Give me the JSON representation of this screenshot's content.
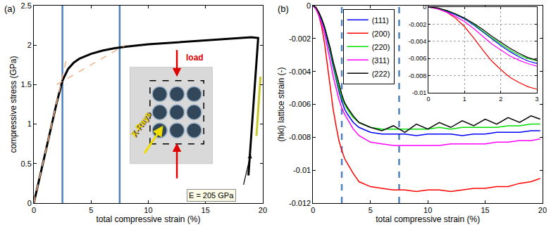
{
  "chart_data": [
    {
      "type": "line",
      "panel_label": "(a)",
      "xlabel": "total compressive strain (%)",
      "ylabel": "compressive stress (GPa)",
      "xlim": [
        0,
        20
      ],
      "ylim": [
        0,
        2.5
      ],
      "xticks": [
        0,
        5,
        10,
        15,
        20
      ],
      "yticks": [
        0,
        0.5,
        1,
        1.5,
        2,
        2.5
      ],
      "grid": false,
      "series": [
        {
          "color": "#000000",
          "line_style": "solid",
          "x": [
            0,
            0.5,
            1,
            1.5,
            2,
            2.5,
            3,
            3.5,
            4,
            5,
            6,
            7,
            8,
            10,
            12,
            14,
            16,
            18,
            19,
            19.6,
            19.4,
            19.2,
            19.0,
            18.85,
            18.75
          ],
          "values": [
            0,
            0.32,
            0.64,
            0.96,
            1.27,
            1.55,
            1.7,
            1.78,
            1.83,
            1.89,
            1.93,
            1.96,
            1.98,
            2.01,
            2.03,
            2.05,
            2.07,
            2.09,
            2.1,
            2.09,
            1.7,
            1.3,
            0.9,
            0.6,
            0.35
          ]
        },
        {
          "color": "#f4b183",
          "line_style": "dashed",
          "x": [
            0,
            2.9
          ],
          "values": [
            0,
            1.85
          ]
        },
        {
          "color": "#f4b183",
          "line_style": "dashed",
          "x": [
            2,
            8
          ],
          "values": [
            1.5,
            2.0
          ]
        },
        {
          "color": "#c8c82a",
          "line_style": "solid",
          "x": [
            19.45,
            19.8
          ],
          "values": [
            0.85,
            1.6
          ]
        }
      ],
      "vertical_lines": {
        "x": [
          2.5,
          7.5
        ],
        "color": "#4f81bd",
        "line_style": "solid"
      },
      "annotations": [
        {
          "text": "load",
          "color": "#e00000"
        },
        {
          "text": "X-Rays",
          "color": "#f0dc00"
        },
        {
          "text": "E = 205 GPa",
          "color": "#000000"
        }
      ]
    },
    {
      "type": "line",
      "panel_label": "(b)",
      "xlabel": "total compressive strain (%)",
      "ylabel": "(hkl) lattice strain (-)",
      "xlim": [
        0,
        20
      ],
      "ylim": [
        -0.012,
        0
      ],
      "xticks": [
        0,
        5,
        10,
        15,
        20
      ],
      "yticks": [
        -0.012,
        -0.01,
        -0.008,
        -0.006,
        -0.004,
        -0.002,
        0
      ],
      "grid": false,
      "legend": "upper left",
      "x": [
        0,
        0.25,
        0.5,
        0.75,
        1,
        1.25,
        1.5,
        1.75,
        2,
        2.25,
        2.5,
        2.75,
        3,
        3.5,
        4,
        5,
        6,
        7,
        8,
        9,
        10,
        11,
        12,
        13,
        14,
        15,
        16,
        17,
        18,
        19,
        19.8
      ],
      "series": [
        {
          "name": "(111)",
          "color": "#0000ff",
          "values": [
            0,
            -0.0002,
            -0.0005,
            -0.0009,
            -0.0014,
            -0.0021,
            -0.0029,
            -0.0037,
            -0.0045,
            -0.0052,
            -0.0058,
            -0.0063,
            -0.0066,
            -0.0071,
            -0.0074,
            -0.0077,
            -0.0078,
            -0.0078,
            -0.0078,
            -0.0079,
            -0.0078,
            -0.0078,
            -0.0078,
            -0.0079,
            -0.0078,
            -0.0078,
            -0.0077,
            -0.0077,
            -0.0077,
            -0.0076,
            -0.0076
          ]
        },
        {
          "name": "(200)",
          "color": "#ff0000",
          "values": [
            0,
            -0.0002,
            -0.0006,
            -0.0013,
            -0.0023,
            -0.0036,
            -0.005,
            -0.0063,
            -0.0073,
            -0.0082,
            -0.0088,
            -0.0093,
            -0.0096,
            -0.0102,
            -0.0107,
            -0.011,
            -0.0111,
            -0.0112,
            -0.0112,
            -0.0113,
            -0.0112,
            -0.0112,
            -0.0113,
            -0.0112,
            -0.0111,
            -0.0111,
            -0.011,
            -0.011,
            -0.0108,
            -0.0107,
            -0.0105
          ]
        },
        {
          "name": "(220)",
          "color": "#00dd00",
          "values": [
            0,
            -0.0002,
            -0.0004,
            -0.0008,
            -0.0013,
            -0.002,
            -0.0028,
            -0.0036,
            -0.0043,
            -0.005,
            -0.0056,
            -0.006,
            -0.0063,
            -0.0068,
            -0.0071,
            -0.0074,
            -0.0075,
            -0.0075,
            -0.0075,
            -0.0075,
            -0.0075,
            -0.0074,
            -0.0075,
            -0.0074,
            -0.0074,
            -0.0074,
            -0.0074,
            -0.0073,
            -0.0073,
            -0.0072,
            -0.0072
          ]
        },
        {
          "name": "(311)",
          "color": "#ff00ff",
          "values": [
            0,
            -0.0002,
            -0.0006,
            -0.0011,
            -0.0017,
            -0.0025,
            -0.0034,
            -0.0043,
            -0.005,
            -0.0057,
            -0.0062,
            -0.0066,
            -0.0069,
            -0.0075,
            -0.0079,
            -0.0083,
            -0.0084,
            -0.0085,
            -0.0085,
            -0.0085,
            -0.0085,
            -0.0085,
            -0.0084,
            -0.0084,
            -0.0084,
            -0.0084,
            -0.0083,
            -0.0083,
            -0.0082,
            -0.0082,
            -0.0081
          ]
        },
        {
          "name": "(222)",
          "color": "#000000",
          "values": [
            0,
            -0.0001,
            -0.0004,
            -0.0008,
            -0.0013,
            -0.0019,
            -0.0026,
            -0.0034,
            -0.0041,
            -0.0048,
            -0.0054,
            -0.0059,
            -0.0062,
            -0.0067,
            -0.0071,
            -0.0074,
            -0.0076,
            -0.0073,
            -0.0077,
            -0.0072,
            -0.0075,
            -0.0071,
            -0.0074,
            -0.007,
            -0.0073,
            -0.0069,
            -0.0072,
            -0.0068,
            -0.0071,
            -0.0067,
            -0.0069
          ]
        }
      ],
      "vertical_lines": {
        "x": [
          2.5,
          7.5
        ],
        "color": "#4f81bd",
        "line_style": "dashed"
      }
    },
    {
      "type": "line",
      "xlim": [
        0,
        3
      ],
      "ylim": [
        -0.01,
        0
      ],
      "xticks": [
        0,
        1,
        2,
        3
      ],
      "yticks": [
        -0.01,
        -0.008,
        -0.006,
        -0.004,
        -0.002,
        0
      ],
      "grid": true,
      "x": [
        0,
        0.25,
        0.5,
        0.75,
        1,
        1.25,
        1.5,
        1.75,
        2,
        2.25,
        2.5,
        2.75,
        3
      ],
      "series": [
        {
          "color": "#0000ff",
          "values": [
            0,
            -0.0002,
            -0.0005,
            -0.0009,
            -0.0014,
            -0.0021,
            -0.0029,
            -0.0037,
            -0.0045,
            -0.0052,
            -0.0058,
            -0.0063,
            -0.0066
          ]
        },
        {
          "color": "#ff0000",
          "values": [
            0,
            -0.0002,
            -0.0006,
            -0.0013,
            -0.0023,
            -0.0036,
            -0.005,
            -0.0063,
            -0.0073,
            -0.0082,
            -0.0088,
            -0.0093,
            -0.0096
          ]
        },
        {
          "color": "#00dd00",
          "values": [
            0,
            -0.0002,
            -0.0004,
            -0.0008,
            -0.0013,
            -0.002,
            -0.0028,
            -0.0036,
            -0.0043,
            -0.005,
            -0.0056,
            -0.006,
            -0.0063
          ]
        },
        {
          "color": "#ff00ff",
          "values": [
            0,
            -0.0002,
            -0.0006,
            -0.0011,
            -0.0017,
            -0.0025,
            -0.0034,
            -0.0043,
            -0.005,
            -0.0057,
            -0.0062,
            -0.0066,
            -0.0069
          ]
        },
        {
          "color": "#000000",
          "values": [
            0,
            -0.0001,
            -0.0004,
            -0.0008,
            -0.0013,
            -0.0019,
            -0.0026,
            -0.0034,
            -0.0041,
            -0.0048,
            -0.0054,
            -0.0059,
            -0.0062
          ]
        }
      ]
    }
  ]
}
